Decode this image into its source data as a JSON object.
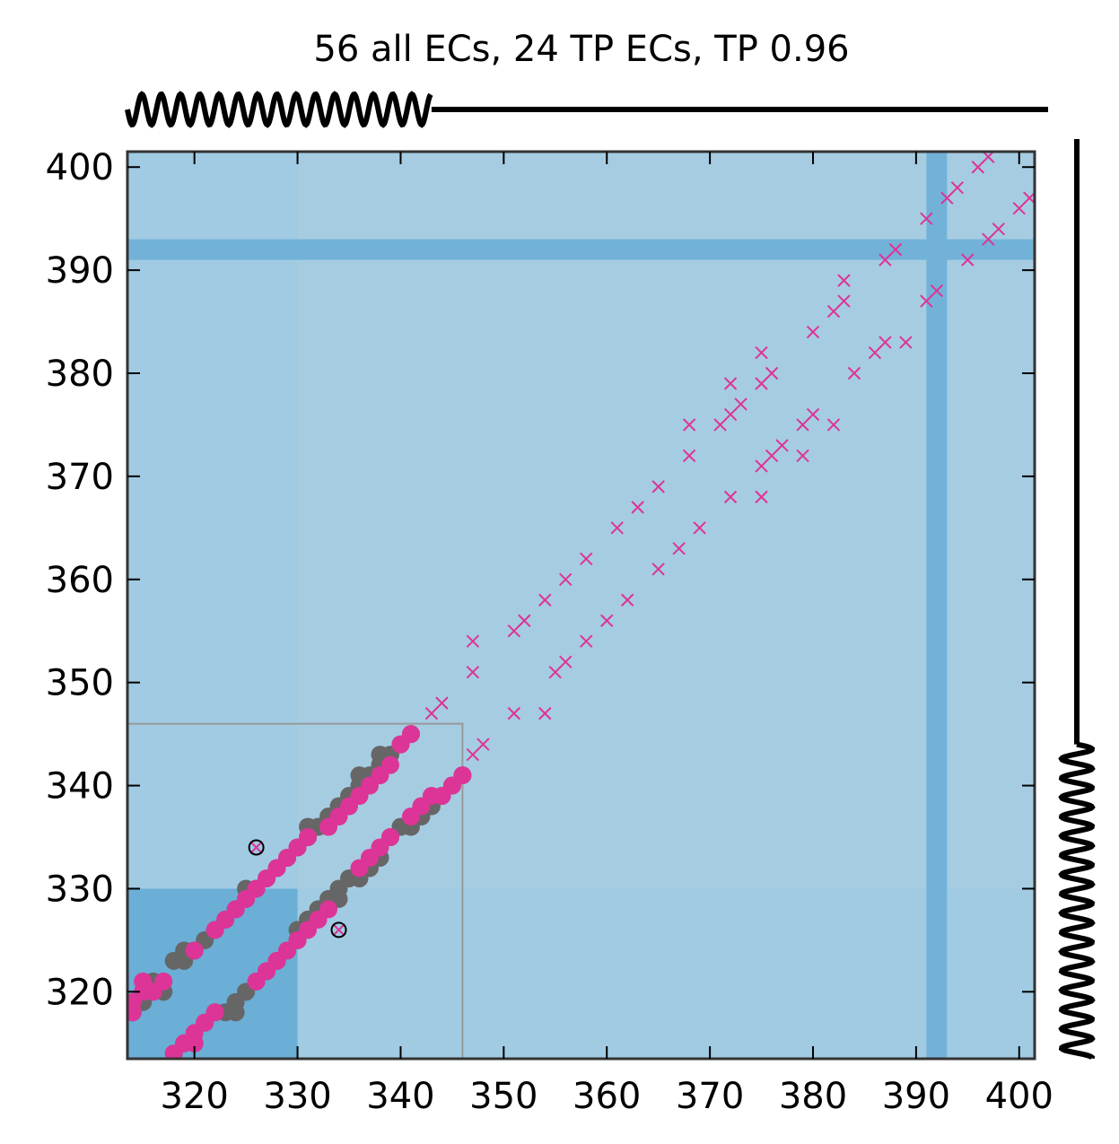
{
  "chart_data": {
    "type": "scatter",
    "title": "56 all ECs, 24 TP ECs, TP 0.96",
    "xlabel": "",
    "ylabel": "",
    "xlim": [
      313.5,
      401.5
    ],
    "ylim": [
      313.5,
      401.5
    ],
    "xticks": [
      320,
      330,
      340,
      350,
      360,
      370,
      380,
      390,
      400
    ],
    "yticks": [
      320,
      330,
      340,
      350,
      360,
      370,
      380,
      390,
      400
    ],
    "grid": false,
    "legend": "none",
    "colors": {
      "background": "#a6cce2",
      "shade_region": "#6baed6",
      "band": "#72b2d9",
      "contact_map": "#666666",
      "true_positive": "#dd3497",
      "false_positive": "#ffffff",
      "zoom_box": "#999999",
      "secondary_structure": "#000000"
    },
    "shaded_regions": [
      {
        "x": [
          313.5,
          330
        ],
        "y": [
          313.5,
          330
        ]
      }
    ],
    "bands": [
      {
        "axis": "y",
        "range": [
          391,
          393
        ]
      },
      {
        "axis": "x",
        "range": [
          391,
          393
        ]
      }
    ],
    "zoom_box": {
      "x": [
        313.5,
        346
      ],
      "y": [
        313.5,
        346
      ]
    },
    "secondary_structure": {
      "top": [
        {
          "type": "helix",
          "range": [
            313.5,
            343
          ]
        },
        {
          "type": "coil",
          "range": [
            343,
            402
          ]
        }
      ],
      "right": [
        {
          "type": "helix",
          "range": [
            313.5,
            344
          ]
        },
        {
          "type": "coil",
          "range": [
            344,
            402
          ]
        }
      ]
    },
    "series": [
      {
        "marker": "circle",
        "color": "#666666",
        "points": [
          [
            314,
            318
          ],
          [
            315,
            319
          ],
          [
            315,
            320
          ],
          [
            316,
            321
          ],
          [
            317,
            320
          ],
          [
            318,
            323
          ],
          [
            319,
            324
          ],
          [
            319,
            323
          ],
          [
            320,
            324
          ],
          [
            321,
            325
          ],
          [
            322,
            326
          ],
          [
            323,
            327
          ],
          [
            324,
            328
          ],
          [
            325,
            329
          ],
          [
            325,
            330
          ],
          [
            326,
            330
          ],
          [
            327,
            331
          ],
          [
            328,
            332
          ],
          [
            329,
            333
          ],
          [
            330,
            334
          ],
          [
            331,
            335
          ],
          [
            331,
            336
          ],
          [
            332,
            336
          ],
          [
            333,
            337
          ],
          [
            334,
            338
          ],
          [
            335,
            339
          ],
          [
            336,
            340
          ],
          [
            336,
            341
          ],
          [
            337,
            341
          ],
          [
            338,
            342
          ],
          [
            338,
            343
          ],
          [
            339,
            343
          ],
          [
            340,
            344
          ],
          [
            341,
            345
          ],
          [
            318,
            314
          ],
          [
            319,
            315
          ],
          [
            320,
            315
          ],
          [
            321,
            317
          ],
          [
            322,
            318
          ],
          [
            323,
            318
          ],
          [
            324,
            318
          ],
          [
            324,
            319
          ],
          [
            325,
            320
          ],
          [
            326,
            321
          ],
          [
            327,
            322
          ],
          [
            328,
            323
          ],
          [
            329,
            324
          ],
          [
            330,
            325
          ],
          [
            330,
            326
          ],
          [
            331,
            327
          ],
          [
            332,
            328
          ],
          [
            333,
            329
          ],
          [
            334,
            329
          ],
          [
            334,
            330
          ],
          [
            335,
            331
          ],
          [
            336,
            331
          ],
          [
            337,
            332
          ],
          [
            338,
            333
          ],
          [
            339,
            335
          ],
          [
            340,
            336
          ],
          [
            341,
            336
          ],
          [
            342,
            337
          ],
          [
            343,
            338
          ],
          [
            344,
            339
          ],
          [
            345,
            340
          ],
          [
            346,
            341
          ]
        ]
      },
      {
        "marker": "circle",
        "color": "#dd3497",
        "points": [
          [
            314,
            318
          ],
          [
            314,
            319
          ],
          [
            315,
            320
          ],
          [
            315,
            321
          ],
          [
            316,
            320
          ],
          [
            317,
            321
          ],
          [
            320,
            324
          ],
          [
            322,
            326
          ],
          [
            323,
            327
          ],
          [
            324,
            328
          ],
          [
            325,
            329
          ],
          [
            326,
            330
          ],
          [
            327,
            331
          ],
          [
            328,
            332
          ],
          [
            329,
            333
          ],
          [
            330,
            334
          ],
          [
            331,
            335
          ],
          [
            333,
            336
          ],
          [
            334,
            337
          ],
          [
            335,
            338
          ],
          [
            336,
            339
          ],
          [
            337,
            340
          ],
          [
            338,
            341
          ],
          [
            339,
            342
          ],
          [
            340,
            344
          ],
          [
            341,
            345
          ],
          [
            318,
            314
          ],
          [
            319,
            315
          ],
          [
            320,
            315
          ],
          [
            320,
            316
          ],
          [
            321,
            317
          ],
          [
            322,
            318
          ],
          [
            326,
            321
          ],
          [
            327,
            322
          ],
          [
            328,
            323
          ],
          [
            329,
            324
          ],
          [
            330,
            325
          ],
          [
            331,
            326
          ],
          [
            332,
            327
          ],
          [
            333,
            328
          ],
          [
            336,
            332
          ],
          [
            337,
            333
          ],
          [
            338,
            334
          ],
          [
            339,
            335
          ],
          [
            341,
            337
          ],
          [
            342,
            338
          ],
          [
            343,
            339
          ],
          [
            344,
            339
          ],
          [
            345,
            340
          ],
          [
            346,
            341
          ]
        ]
      },
      {
        "marker": "cross",
        "color": "#dd3497",
        "points": [
          [
            326,
            334
          ],
          [
            334,
            326
          ],
          [
            343,
            347
          ],
          [
            344,
            348
          ],
          [
            347,
            343
          ],
          [
            347,
            351
          ],
          [
            347,
            354
          ],
          [
            348,
            344
          ],
          [
            351,
            347
          ],
          [
            351,
            355
          ],
          [
            352,
            356
          ],
          [
            354,
            347
          ],
          [
            354,
            358
          ],
          [
            355,
            351
          ],
          [
            356,
            352
          ],
          [
            356,
            360
          ],
          [
            358,
            354
          ],
          [
            358,
            362
          ],
          [
            360,
            356
          ],
          [
            361,
            365
          ],
          [
            362,
            358
          ],
          [
            363,
            367
          ],
          [
            365,
            361
          ],
          [
            365,
            369
          ],
          [
            367,
            363
          ],
          [
            368,
            372
          ],
          [
            368,
            375
          ],
          [
            369,
            365
          ],
          [
            371,
            375
          ],
          [
            372,
            368
          ],
          [
            372,
            376
          ],
          [
            372,
            379
          ],
          [
            373,
            377
          ],
          [
            375,
            368
          ],
          [
            375,
            371
          ],
          [
            375,
            379
          ],
          [
            375,
            382
          ],
          [
            376,
            372
          ],
          [
            376,
            380
          ],
          [
            377,
            373
          ],
          [
            379,
            372
          ],
          [
            379,
            375
          ],
          [
            380,
            376
          ],
          [
            380,
            384
          ],
          [
            382,
            375
          ],
          [
            382,
            386
          ],
          [
            383,
            387
          ],
          [
            383,
            389
          ],
          [
            384,
            380
          ],
          [
            386,
            382
          ],
          [
            387,
            383
          ],
          [
            387,
            391
          ],
          [
            388,
            392
          ],
          [
            389,
            383
          ],
          [
            391,
            387
          ],
          [
            391,
            395
          ],
          [
            392,
            388
          ],
          [
            393,
            397
          ],
          [
            394,
            398
          ],
          [
            395,
            391
          ],
          [
            396,
            400
          ],
          [
            397,
            393
          ],
          [
            397,
            401
          ],
          [
            398,
            394
          ],
          [
            400,
            396
          ],
          [
            401,
            397
          ]
        ]
      },
      {
        "marker": "open-circle",
        "color": "#000000",
        "points": [
          [
            326,
            334
          ],
          [
            334,
            326
          ]
        ]
      }
    ]
  }
}
